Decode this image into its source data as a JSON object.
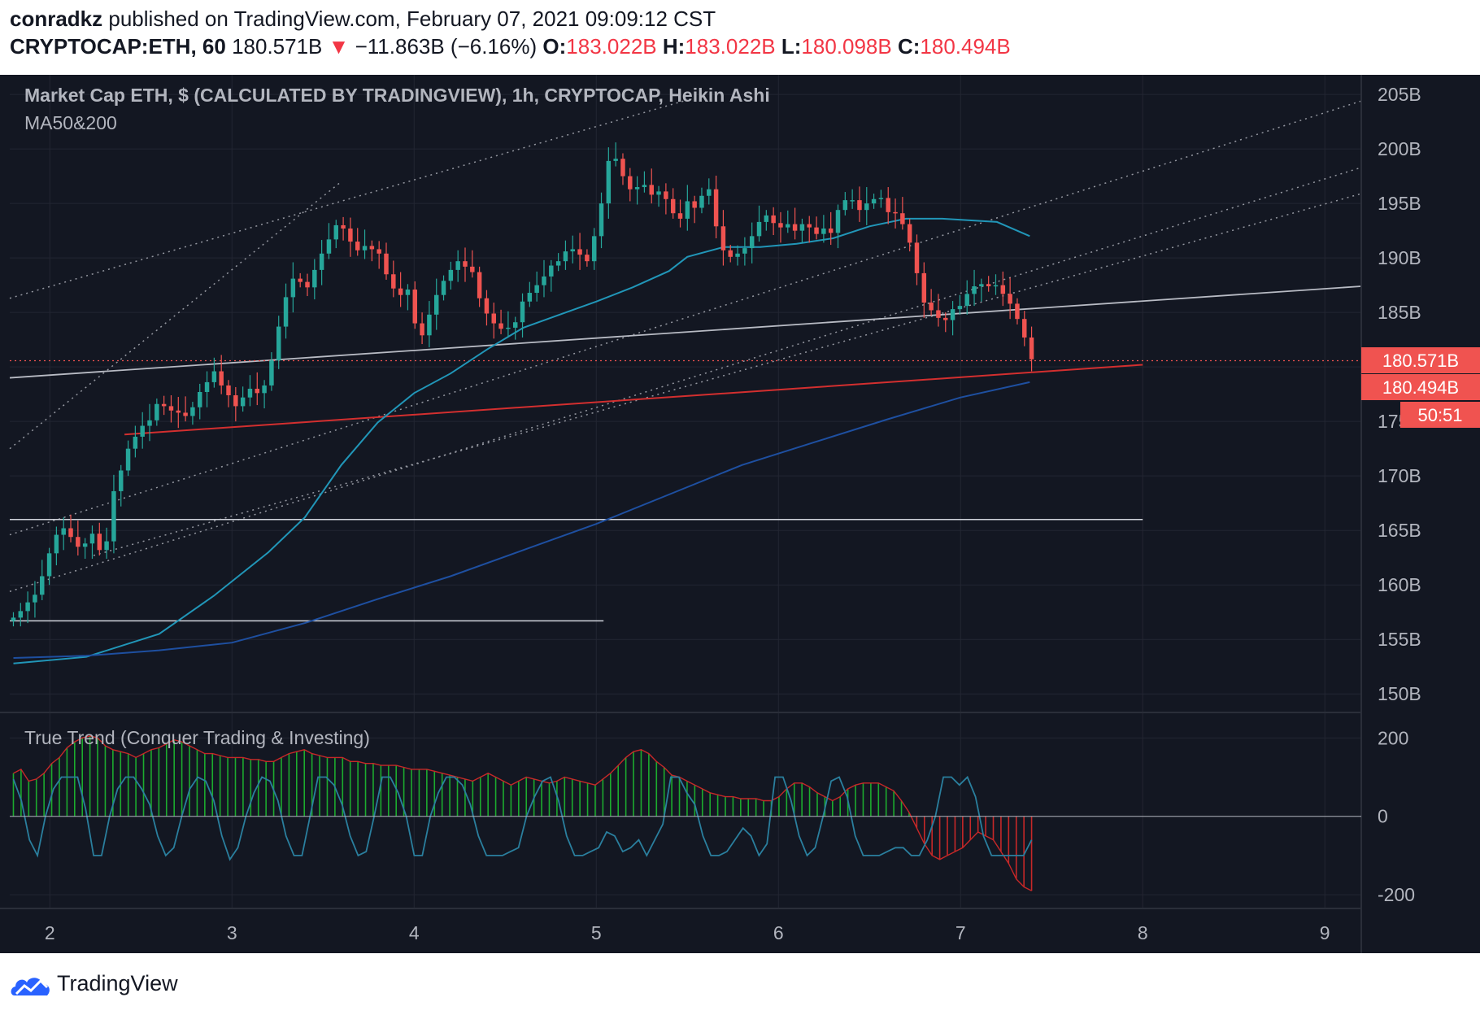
{
  "header": {
    "author": "conradkz",
    "published_text": "published on TradingView.com, February 07, 2021 09:09:12 CST",
    "symbol": "CRYPTOCAP:ETH, 60",
    "last": "180.571B",
    "change": "−11.863B (−6.16%)",
    "open_label": "O:",
    "open": "183.022B",
    "high_label": "H:",
    "high": "183.022B",
    "low_label": "L:",
    "low": "180.098B",
    "close_label": "C:",
    "close": "180.494B"
  },
  "legend": {
    "title": "Market Cap ETH, $ (CALCULATED BY TRADINGVIEW), 1h, CRYPTOCAP, Heikin Ashi",
    "ma": "MA50&200",
    "indicator": "True Trend (Conquer Trading & Investing)"
  },
  "price_tags": {
    "last": "180.571B",
    "close": "180.494B",
    "countdown": "50:51"
  },
  "footer": {
    "brand": "TradingView"
  },
  "colors": {
    "background": "#131722",
    "up": "#26a69a",
    "down": "#ef5350",
    "ma50": "#2196b8",
    "ma200": "#1e4fa0",
    "support_red": "#d32f2f",
    "tag_red": "#f05350",
    "hist_green": "#1cab2e",
    "hist_red": "#c62828",
    "osc_line": "#2a7f9e"
  },
  "chart_data": [
    {
      "type": "candlestick",
      "style": "Heikin Ashi",
      "title": "Market Cap ETH, $ (CALCULATED BY TRADINGVIEW), 1h, CRYPTOCAP, Heikin Ashi",
      "x_ticks": [
        "2",
        "3",
        "4",
        "5",
        "6",
        "7",
        "8",
        "9"
      ],
      "x_range": [
        1.78,
        9.2
      ],
      "y_ticks": [
        "150B",
        "155B",
        "160B",
        "165B",
        "170B",
        "175B",
        "180B",
        "185B",
        "190B",
        "195B",
        "200B",
        "205B"
      ],
      "y_range": [
        148.3,
        206.8
      ],
      "grid": true,
      "candle_closes": [
        157.0,
        157.6,
        158.4,
        159.1,
        160.8,
        162.9,
        164.6,
        165.2,
        164.4,
        163.5,
        163.8,
        164.7,
        163.2,
        164.0,
        168.6,
        170.5,
        172.5,
        173.6,
        174.6,
        175.1,
        176.6,
        176.4,
        176.0,
        175.8,
        175.5,
        176.3,
        177.7,
        178.6,
        179.6,
        178.3,
        177.4,
        176.4,
        177.2,
        178.0,
        177.6,
        178.3,
        180.6,
        183.7,
        186.4,
        188.1,
        187.8,
        187.3,
        188.9,
        190.4,
        191.7,
        193.0,
        192.7,
        191.5,
        190.7,
        191.1,
        190.8,
        190.4,
        188.5,
        187.2,
        186.6,
        187.1,
        184.0,
        182.9,
        184.8,
        186.6,
        187.9,
        188.9,
        189.7,
        189.2,
        188.7,
        186.3,
        184.9,
        184.0,
        183.5,
        183.6,
        184.1,
        186.0,
        186.8,
        187.5,
        188.3,
        189.3,
        189.7,
        190.6,
        190.8,
        190.3,
        189.7,
        192.0,
        195.0,
        198.9,
        199.1,
        197.5,
        196.3,
        196.5,
        196.7,
        195.8,
        196.1,
        195.4,
        194.1,
        193.6,
        195.2,
        194.6,
        195.7,
        196.3,
        192.9,
        190.7,
        190.1,
        190.4,
        190.9,
        192.0,
        193.3,
        193.9,
        193.2,
        192.8,
        193.1,
        192.5,
        193.1,
        192.8,
        192.2,
        192.7,
        192.3,
        194.4,
        195.3,
        195.3,
        194.4,
        195.0,
        195.4,
        195.5,
        194.2,
        194.1,
        193.1,
        191.4,
        188.6,
        185.9,
        185.2,
        184.5,
        184.3,
        185.3,
        185.6,
        186.7,
        187.4,
        187.6,
        187.4,
        187.5,
        186.7,
        185.8,
        184.4,
        182.7,
        180.7
      ],
      "candle_opens": [
        156.7,
        157.0,
        157.6,
        158.4,
        159.1,
        160.8,
        162.9,
        164.6,
        165.2,
        164.4,
        163.5,
        163.8,
        164.7,
        163.2,
        164.0,
        168.6,
        170.5,
        172.5,
        173.6,
        174.6,
        175.1,
        176.6,
        176.4,
        176.0,
        175.8,
        175.5,
        176.3,
        177.7,
        178.6,
        179.6,
        178.3,
        177.4,
        176.4,
        177.2,
        178.0,
        177.6,
        178.3,
        180.6,
        183.7,
        186.4,
        188.1,
        187.8,
        187.3,
        188.9,
        190.4,
        191.7,
        193.0,
        192.7,
        191.5,
        190.7,
        191.1,
        190.8,
        190.4,
        188.5,
        187.2,
        186.6,
        187.1,
        184.0,
        182.9,
        184.8,
        186.6,
        187.9,
        188.9,
        189.7,
        189.2,
        188.7,
        186.3,
        184.9,
        184.0,
        183.5,
        183.6,
        184.1,
        186.0,
        186.8,
        187.5,
        188.3,
        189.3,
        189.7,
        190.6,
        190.8,
        190.3,
        189.7,
        192.0,
        195.0,
        198.9,
        199.1,
        197.5,
        196.3,
        196.5,
        196.7,
        195.8,
        196.1,
        195.4,
        194.1,
        193.6,
        195.2,
        194.6,
        195.7,
        196.3,
        192.9,
        190.7,
        190.1,
        190.4,
        190.9,
        192.0,
        193.3,
        193.9,
        193.2,
        192.8,
        193.1,
        192.5,
        193.1,
        192.8,
        192.2,
        192.7,
        192.3,
        194.4,
        195.3,
        195.3,
        194.4,
        195.0,
        195.4,
        195.5,
        194.2,
        194.1,
        193.1,
        191.4,
        188.6,
        185.9,
        185.2,
        184.5,
        184.3,
        185.3,
        185.6,
        186.7,
        187.4,
        187.6,
        187.4,
        187.5,
        186.7,
        185.8,
        184.4,
        182.7
      ],
      "last_price": 180.571,
      "ma50": [
        [
          1.8,
          152.8
        ],
        [
          2.2,
          153.4
        ],
        [
          2.6,
          155.5
        ],
        [
          2.9,
          159.0
        ],
        [
          3.2,
          163.0
        ],
        [
          3.4,
          166.2
        ],
        [
          3.6,
          171.0
        ],
        [
          3.8,
          174.9
        ],
        [
          4.0,
          177.6
        ],
        [
          4.2,
          179.4
        ],
        [
          4.4,
          181.6
        ],
        [
          4.6,
          183.6
        ],
        [
          4.8,
          184.8
        ],
        [
          5.0,
          186.0
        ],
        [
          5.2,
          187.3
        ],
        [
          5.4,
          188.8
        ],
        [
          5.5,
          190.1
        ],
        [
          5.7,
          191.0
        ],
        [
          5.9,
          191.0
        ],
        [
          6.1,
          191.3
        ],
        [
          6.3,
          191.8
        ],
        [
          6.5,
          192.9
        ],
        [
          6.7,
          193.6
        ],
        [
          6.9,
          193.6
        ],
        [
          7.2,
          193.3
        ],
        [
          7.38,
          192.0
        ]
      ],
      "ma200": [
        [
          1.8,
          153.3
        ],
        [
          2.2,
          153.5
        ],
        [
          2.6,
          154.0
        ],
        [
          3.0,
          154.7
        ],
        [
          3.4,
          156.5
        ],
        [
          3.8,
          158.7
        ],
        [
          4.2,
          160.8
        ],
        [
          4.6,
          163.2
        ],
        [
          5.0,
          165.6
        ],
        [
          5.4,
          168.3
        ],
        [
          5.8,
          171.0
        ],
        [
          6.2,
          173.1
        ],
        [
          6.6,
          175.2
        ],
        [
          7.0,
          177.2
        ],
        [
          7.38,
          178.6
        ]
      ],
      "trendlines": [
        {
          "kind": "dotted",
          "from": [
            1.78,
            172.5
          ],
          "to": [
            3.6,
            197.0
          ]
        },
        {
          "kind": "dotted",
          "from": [
            1.78,
            186.3
          ],
          "to": [
            5.5,
            204.5
          ]
        },
        {
          "kind": "dotted",
          "from": [
            1.78,
            164.6
          ],
          "to": [
            9.2,
            204.4
          ]
        },
        {
          "kind": "dotted",
          "from": [
            1.78,
            159.4
          ],
          "to": [
            9.2,
            198.3
          ]
        },
        {
          "kind": "dotted",
          "from": [
            2.24,
            162.7
          ],
          "to": [
            9.2,
            195.9
          ]
        },
        {
          "kind": "solid_grey",
          "from": [
            1.78,
            179.0
          ],
          "to": [
            9.2,
            187.4
          ]
        },
        {
          "kind": "solid_red",
          "from": [
            2.41,
            173.8
          ],
          "to": [
            8.0,
            180.2
          ]
        },
        {
          "kind": "solid_white",
          "from": [
            1.78,
            166.0
          ],
          "to": [
            8.0,
            166.0
          ]
        },
        {
          "kind": "solid_white",
          "from": [
            1.78,
            156.7
          ],
          "to": [
            5.04,
            156.7
          ]
        }
      ]
    },
    {
      "type": "bar",
      "title": "True Trend (Conquer Trading & Investing)",
      "y_ticks": [
        "200",
        "0",
        "-200"
      ],
      "y_range": [
        -235,
        265
      ],
      "histogram": [
        110,
        120,
        90,
        95,
        110,
        135,
        150,
        175,
        190,
        200,
        205,
        200,
        180,
        170,
        165,
        160,
        150,
        160,
        170,
        175,
        185,
        195,
        190,
        180,
        170,
        160,
        160,
        155,
        150,
        150,
        150,
        145,
        145,
        140,
        140,
        150,
        160,
        165,
        170,
        160,
        155,
        150,
        150,
        150,
        140,
        140,
        135,
        135,
        130,
        130,
        130,
        125,
        120,
        120,
        120,
        115,
        110,
        105,
        100,
        95,
        90,
        100,
        110,
        100,
        90,
        80,
        90,
        100,
        95,
        90,
        85,
        90,
        100,
        95,
        90,
        85,
        80,
        95,
        110,
        130,
        150,
        165,
        170,
        160,
        140,
        125,
        105,
        100,
        90,
        80,
        70,
        60,
        55,
        50,
        50,
        45,
        45,
        45,
        40,
        40,
        50,
        70,
        85,
        85,
        75,
        60,
        50,
        40,
        50,
        70,
        80,
        85,
        85,
        85,
        75,
        65,
        40,
        10,
        -30,
        -70,
        -100,
        -110,
        -100,
        -90,
        -80,
        -60,
        -40,
        -50,
        -60,
        -90,
        -120,
        -160,
        -180,
        -190
      ],
      "oscillator": [
        95,
        40,
        -60,
        -100,
        0,
        70,
        100,
        100,
        100,
        20,
        -100,
        -100,
        0,
        70,
        100,
        100,
        70,
        30,
        -50,
        -100,
        -80,
        0,
        70,
        100,
        90,
        40,
        -50,
        -110,
        -80,
        0,
        60,
        100,
        90,
        40,
        -50,
        -100,
        -100,
        0,
        100,
        100,
        80,
        30,
        -50,
        -100,
        -90,
        0,
        100,
        100,
        60,
        0,
        -100,
        -100,
        0,
        60,
        100,
        100,
        80,
        30,
        -50,
        -100,
        -100,
        -100,
        -90,
        -80,
        0,
        50,
        90,
        100,
        40,
        -50,
        -100,
        -100,
        -90,
        -80,
        -40,
        -50,
        -90,
        -80,
        -60,
        -100,
        -60,
        -20,
        100,
        100,
        60,
        30,
        -50,
        -100,
        -100,
        -90,
        -60,
        -30,
        -50,
        -100,
        -70,
        100,
        100,
        40,
        -50,
        -100,
        -80,
        0,
        90,
        100,
        50,
        -50,
        -100,
        -100,
        -100,
        -90,
        -80,
        -80,
        -100,
        -100,
        -60,
        0,
        100,
        100,
        80,
        100,
        50,
        -50,
        -100,
        -100,
        -100,
        -100,
        -100,
        -60
      ]
    }
  ]
}
